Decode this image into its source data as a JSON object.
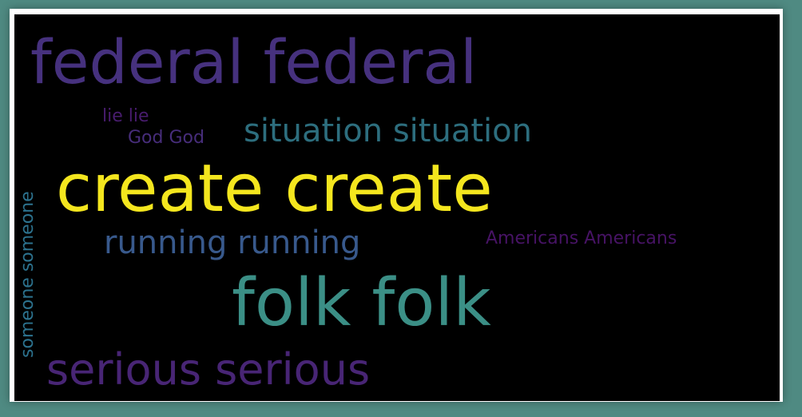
{
  "word_cloud": {
    "background": "#000000",
    "frame_color": "#ffffff",
    "page_background": "#4f8a82",
    "words": {
      "federal": "federal federal",
      "lie": "lie lie",
      "god": "God God",
      "situation": "situation situation",
      "create": "create create",
      "running": "running running",
      "americans": "Americans Americans",
      "folk": "folk folk",
      "serious": "serious serious",
      "someone": "someone someone"
    },
    "colors": {
      "federal": "#46317e",
      "lie": "#481c6e",
      "god": "#472d7b",
      "situation": "#2d6e7e",
      "create": "#f4e61e",
      "running": "#38598c",
      "americans": "#471365",
      "folk": "#3b8f86",
      "serious": "#482575",
      "someone": "#2c728e"
    }
  }
}
